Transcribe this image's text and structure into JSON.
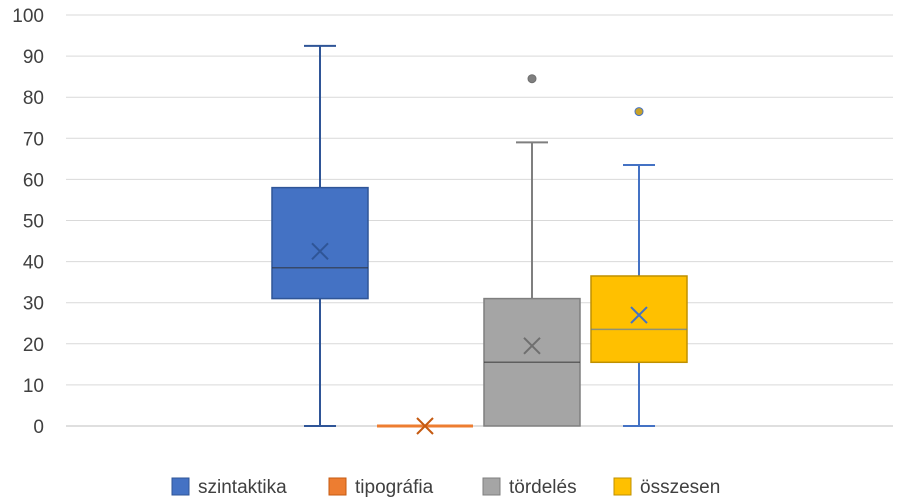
{
  "chart_data": {
    "type": "box",
    "ylim": [
      0,
      100
    ],
    "y_ticks": [
      "0",
      "10",
      "20",
      "30",
      "40",
      "50",
      "60",
      "70",
      "80",
      "90",
      "100"
    ],
    "grid": true,
    "legend_position": "bottom",
    "series": [
      {
        "name": "szintaktika",
        "color": "#4472C4",
        "min": 0,
        "q1": 31,
        "median": 38.5,
        "q3": 58,
        "max": 92.5,
        "mean": 42.5,
        "outliers": []
      },
      {
        "name": "tipográfia",
        "color": "#ED7D31",
        "min": 0,
        "q1": 0,
        "median": 0,
        "q3": 0,
        "max": 0,
        "mean": 0,
        "outliers": []
      },
      {
        "name": "tördelés",
        "color": "#A5A5A5",
        "min": 0,
        "q1": 0,
        "median": 15.5,
        "q3": 31,
        "max": 69,
        "mean": 19.5,
        "outliers": [
          84.5
        ]
      },
      {
        "name": "összesen",
        "color": "#FFC000",
        "min": 0,
        "q1": 15.5,
        "median": 23.5,
        "q3": 36.5,
        "max": 63.5,
        "mean": 27,
        "outliers": [
          76.5
        ]
      }
    ]
  }
}
